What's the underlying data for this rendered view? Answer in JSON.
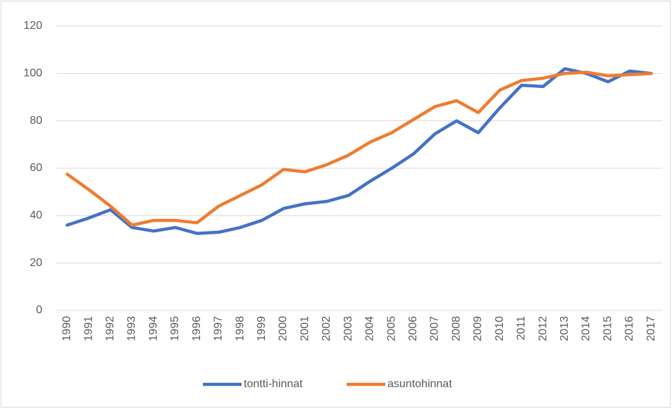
{
  "chart_data": {
    "type": "line",
    "categories": [
      "1990",
      "1991",
      "1992",
      "1993",
      "1994",
      "1995",
      "1996",
      "1997",
      "1998",
      "1999",
      "2000",
      "2001",
      "2002",
      "2003",
      "2004",
      "2005",
      "2006",
      "2007",
      "2008",
      "2009",
      "2010",
      "2011",
      "2012",
      "2013",
      "2014",
      "2015",
      "2016",
      "2017"
    ],
    "series": [
      {
        "name": "tontti-hinnat",
        "color": "#4472c4",
        "values": [
          36,
          39,
          42.5,
          35,
          33.5,
          35,
          32.5,
          33,
          35,
          38,
          43,
          45,
          46,
          48.5,
          54.5,
          60,
          66,
          74.5,
          80,
          75,
          85.5,
          95,
          94.5,
          102,
          100,
          96.5,
          101,
          100
        ]
      },
      {
        "name": "asuntohinnat",
        "color": "#ed7d31",
        "values": [
          57.5,
          51,
          44,
          36,
          38,
          38,
          37,
          44,
          48.5,
          53,
          59.5,
          58.5,
          61.5,
          65.5,
          71,
          75,
          80.5,
          86,
          88.5,
          83.5,
          93,
          97,
          98,
          100,
          100.5,
          99,
          99.5,
          100
        ]
      }
    ],
    "ylim": [
      0,
      120
    ],
    "yticks": [
      0,
      20,
      40,
      60,
      80,
      100,
      120
    ],
    "grid": true,
    "legend": "bottom"
  }
}
